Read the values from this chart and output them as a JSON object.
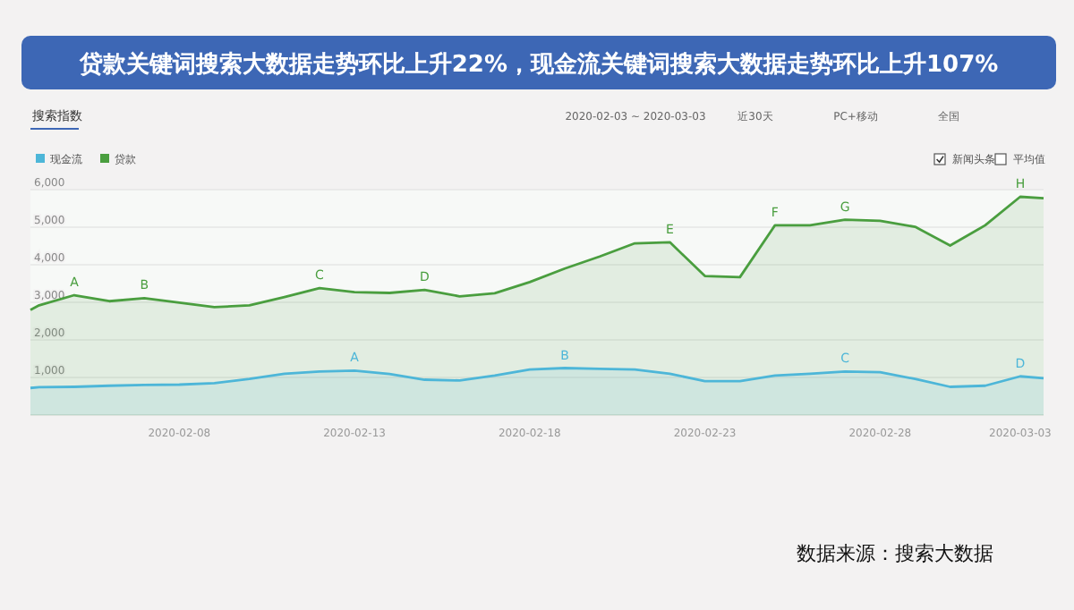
{
  "chart_data": {
    "type": "area",
    "title": "贷款关键词搜索大数据走势环比上升22%，现金流关键词搜索大数据走势环比上升107%",
    "x": [
      "2020-02-03T18:00",
      "2020-02-04",
      "2020-02-05",
      "2020-02-06",
      "2020-02-07",
      "2020-02-08",
      "2020-02-09",
      "2020-02-10",
      "2020-02-11",
      "2020-02-12",
      "2020-02-13",
      "2020-02-14",
      "2020-02-15",
      "2020-02-16",
      "2020-02-17",
      "2020-02-18",
      "2020-02-19",
      "2020-02-20",
      "2020-02-21",
      "2020-02-22",
      "2020-02-23",
      "2020-02-24",
      "2020-02-25",
      "2020-02-26",
      "2020-02-27",
      "2020-02-28",
      "2020-02-29",
      "2020-03-01",
      "2020-03-02",
      "2020-03-03",
      "2020-03-03T16:00"
    ],
    "series": [
      {
        "name": "现金流",
        "color": "#4db6d8",
        "values": [
          720,
          740,
          750,
          780,
          800,
          810,
          850,
          960,
          1100,
          1160,
          1180,
          1090,
          940,
          920,
          1050,
          1210,
          1250,
          1230,
          1210,
          1100,
          900,
          900,
          1050,
          1100,
          1160,
          1140,
          960,
          750,
          780,
          1030,
          980
        ]
      },
      {
        "name": "贷款",
        "color": "#4a9e3f",
        "values": [
          2800,
          2920,
          3190,
          3030,
          3110,
          2990,
          2870,
          2920,
          3140,
          3380,
          3270,
          3250,
          3330,
          3160,
          3240,
          3540,
          3900,
          4220,
          4570,
          4600,
          3700,
          3670,
          5050,
          5050,
          5200,
          5170,
          5010,
          4510,
          5050,
          5810,
          5770
        ]
      }
    ],
    "xlim": [
      "2020-02-03T18:00",
      "2020-03-03T16:00"
    ],
    "xticks": [
      "2020-02-08",
      "2020-02-13",
      "2020-02-18",
      "2020-02-23",
      "2020-02-28",
      "2020-03-03"
    ],
    "ylim": [
      0,
      6000
    ],
    "yticks": [
      {
        "value": 1000,
        "label": "1,000"
      },
      {
        "value": 2000,
        "label": "2,000"
      },
      {
        "value": 3000,
        "label": "3,000"
      },
      {
        "value": 4000,
        "label": "4,000"
      },
      {
        "value": 5000,
        "label": "5,000"
      },
      {
        "value": 6000,
        "label": "6,000"
      }
    ],
    "grid": "y",
    "legend": "top left",
    "marker": "none",
    "line_style": "solid",
    "annotations": [
      {
        "text": "A",
        "x": "2020-02-05",
        "y": 3190
      },
      {
        "text": "B",
        "x": "2020-02-07",
        "y": 3110
      },
      {
        "text": "C",
        "x": "2020-02-12",
        "y": 3380
      },
      {
        "text": "D",
        "x": "2020-02-15",
        "y": 3330
      },
      {
        "text": "E",
        "x": "2020-02-22",
        "y": 4600
      },
      {
        "text": "F",
        "x": "2020-02-25",
        "y": 5050
      },
      {
        "text": "G",
        "x": "2020-02-27",
        "y": 5200
      },
      {
        "text": "H",
        "x": "2020-03-03",
        "y": 5810
      },
      {
        "text": "A",
        "x": "2020-02-13",
        "y": 1180
      },
      {
        "text": "B",
        "x": "2020-02-19",
        "y": 1250
      },
      {
        "text": "C",
        "x": "2020-02-27",
        "y": 1160
      },
      {
        "text": "D",
        "x": "2020-03-03",
        "y": 1030
      },
      "搜索指数",
      "2020-02-03 ~ 2020-03-03",
      "近30天",
      "PC+移动",
      "全国",
      "新闻头条",
      "平均值",
      "数据来源：搜索大数据"
    ]
  }
}
